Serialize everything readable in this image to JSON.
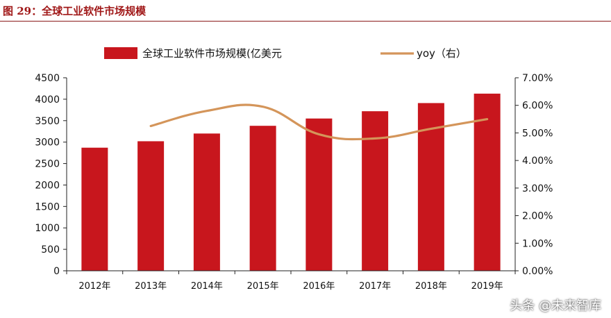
{
  "figure": {
    "title": "图 29：全球工业软件市场规模",
    "watermark": "头条 @未来智库"
  },
  "chart_data": {
    "type": "bar",
    "categories": [
      "2012年",
      "2013年",
      "2014年",
      "2015年",
      "2016年",
      "2017年",
      "2018年",
      "2019年"
    ],
    "series": [
      {
        "name": "全球工业软件市场规模(亿美元",
        "type": "bar",
        "axis": "left",
        "color": "#c8161d",
        "values": [
          2870,
          3020,
          3200,
          3380,
          3550,
          3720,
          3910,
          4130
        ]
      },
      {
        "name": "yoy（右）",
        "type": "line",
        "axis": "right",
        "color": "#d4955a",
        "values": [
          null,
          5.25,
          5.8,
          5.95,
          4.95,
          4.8,
          5.15,
          5.5
        ]
      }
    ],
    "ylim_left": [
      0,
      4500
    ],
    "yticks_left": [
      "0",
      "500",
      "1000",
      "1500",
      "2000",
      "2500",
      "3000",
      "3500",
      "4000",
      "4500"
    ],
    "ylim_right": [
      0,
      7
    ],
    "yticks_right": [
      "0.00%",
      "1.00%",
      "2.00%",
      "3.00%",
      "4.00%",
      "5.00%",
      "6.00%",
      "7.00%"
    ],
    "legend_position": "top",
    "grid": false
  }
}
